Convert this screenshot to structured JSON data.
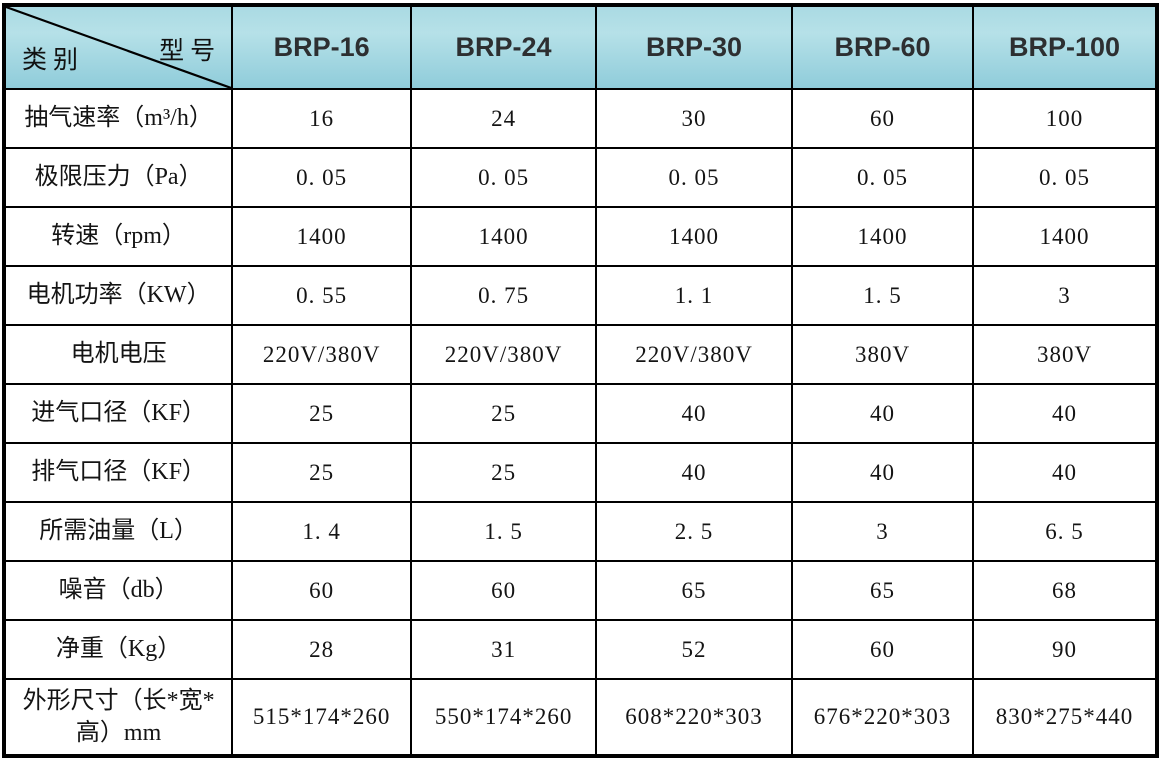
{
  "header": {
    "category_label": "类别",
    "model_label": "型号",
    "models": [
      "BRP-16",
      "BRP-24",
      "BRP-30",
      "BRP-60",
      "BRP-100"
    ]
  },
  "rows": [
    {
      "label": "抽气速率（m³/h）",
      "values": [
        "16",
        "24",
        "30",
        "60",
        "100"
      ]
    },
    {
      "label": "极限压力（Pa）",
      "values": [
        "0. 05",
        "0. 05",
        "0. 05",
        "0. 05",
        "0. 05"
      ]
    },
    {
      "label": "转速（rpm）",
      "values": [
        "1400",
        "1400",
        "1400",
        "1400",
        "1400"
      ]
    },
    {
      "label": "电机功率（KW）",
      "values": [
        "0. 55",
        "0. 75",
        "1. 1",
        "1. 5",
        "3"
      ]
    },
    {
      "label": "电机电压",
      "values": [
        "220V/380V",
        "220V/380V",
        "220V/380V",
        "380V",
        "380V"
      ]
    },
    {
      "label": "进气口径（KF）",
      "values": [
        "25",
        "25",
        "40",
        "40",
        "40"
      ]
    },
    {
      "label": "排气口径（KF）",
      "values": [
        "25",
        "25",
        "40",
        "40",
        "40"
      ]
    },
    {
      "label": "所需油量（L）",
      "values": [
        "1. 4",
        "1. 5",
        "2. 5",
        "3",
        "6. 5"
      ]
    },
    {
      "label": "噪音（db）",
      "values": [
        "60",
        "60",
        "65",
        "65",
        "68"
      ]
    },
    {
      "label": "净重（Kg）",
      "values": [
        "28",
        "31",
        "52",
        "60",
        "90"
      ]
    },
    {
      "label": "外形尺寸（长*宽*高）mm",
      "values": [
        "515*174*260",
        "550*174*260",
        "608*220*303",
        "676*220*303",
        "830*275*440"
      ]
    }
  ],
  "colors": {
    "header_bg_top": "#b6e1e8",
    "header_bg_bottom": "#8fccda",
    "border": "#000000",
    "text": "#141414",
    "model_text": "#2d2f31"
  }
}
